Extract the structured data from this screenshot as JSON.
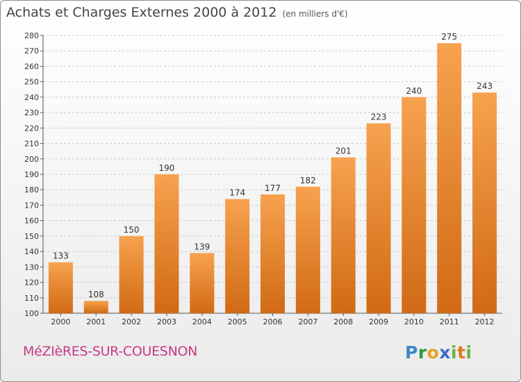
{
  "header": {
    "title": "Achats et Charges Externes 2000 à 2012",
    "unit_note": "(en milliers d'€)"
  },
  "footer": {
    "commune": "MéZIèRES-SUR-COUESNON",
    "brand": "Proxiti"
  },
  "colors": {
    "bar_top": "#f7a24f",
    "bar_bottom": "#d16a14",
    "commune_text": "#c73a86",
    "brand_p": "#3a86c7",
    "brand_r": "#2a9a3a",
    "brand_o": "#e8a020",
    "brand_x": "#3a6cc7",
    "brand_i": "#6ab04a",
    "brand_t": "#e07a20"
  },
  "chart_data": {
    "type": "bar",
    "title": "Achats et Charges Externes 2000 à 2012",
    "subtitle": "(en milliers d'€)",
    "xlabel": "",
    "ylabel": "",
    "categories": [
      "2000",
      "2001",
      "2002",
      "2003",
      "2004",
      "2005",
      "2006",
      "2007",
      "2008",
      "2009",
      "2010",
      "2011",
      "2012"
    ],
    "values": [
      133,
      108,
      150,
      190,
      139,
      174,
      177,
      182,
      201,
      223,
      240,
      275,
      243
    ],
    "ylim": [
      100,
      280
    ],
    "yticks": [
      100,
      110,
      120,
      130,
      140,
      150,
      160,
      170,
      180,
      190,
      200,
      210,
      220,
      230,
      240,
      250,
      260,
      270,
      280
    ],
    "grid": "horizontal dashed",
    "legend": "none"
  }
}
